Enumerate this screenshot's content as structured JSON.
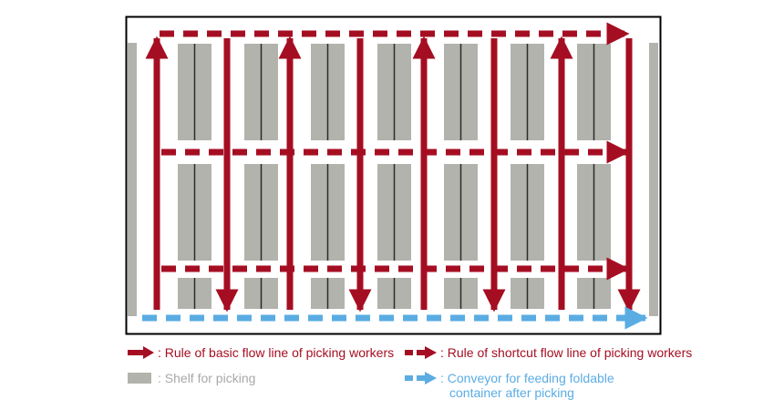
{
  "colors": {
    "flow": "#a50e22",
    "shelf": "#b3b3ad",
    "shelf_line": "#2b2b2b",
    "conveyor": "#5aace3",
    "frame": "#000000",
    "text_shelf": "#a8a8a8",
    "text_conveyor": "#5aace3"
  },
  "legend": {
    "basic_flow": ": Rule of basic flow line of picking workers",
    "shortcut_flow": ": Rule of shortcut flow line of picking workers",
    "shelf": ": Shelf for picking",
    "conveyor_line1": ": Conveyor for feeding foldable",
    "conveyor_line2": "container after picking"
  },
  "diagram": {
    "shelf_columns": 7,
    "shelf_rows": 3,
    "up_arrow_aisles": 4,
    "down_arrow_aisles": 4,
    "shortcut_rows": 3
  }
}
